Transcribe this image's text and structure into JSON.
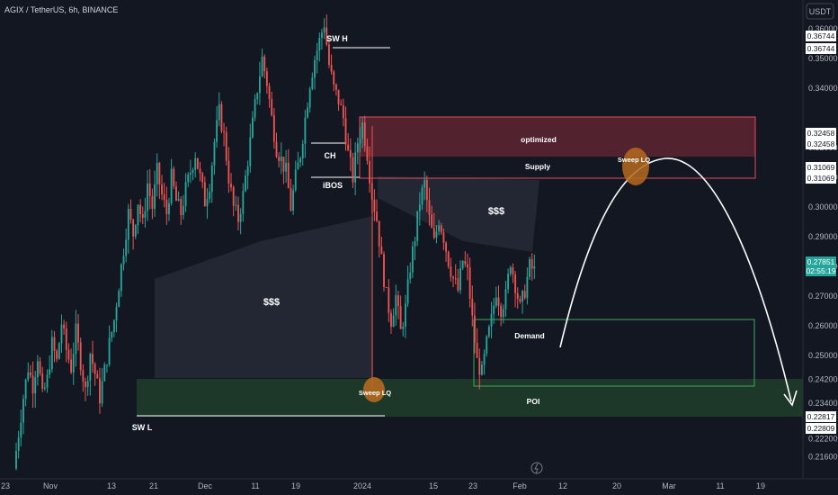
{
  "header": {
    "title": "AGIX / TetherUS, 6h, BINANCE",
    "currency_button": "USDT"
  },
  "chart_data": {
    "type": "candlestick",
    "symbol": "AGIX / TetherUS",
    "interval": "6h",
    "exchange": "BINANCE",
    "y_ticks": [
      0.216,
      0.222,
      0.234,
      0.242,
      0.25,
      0.26,
      0.27,
      0.28,
      0.29,
      0.3,
      0.31,
      0.32,
      0.34,
      0.35,
      0.36
    ],
    "y_tick_labels": [
      "0.21600",
      "0.22200",
      "0.23400",
      "0.24200",
      "0.25000",
      "0.26000",
      "0.27000",
      "0.28000",
      "0.29000",
      "0.30000",
      "0.31000",
      "0.32000",
      "0.34000",
      "0.35000",
      "0.36000"
    ],
    "x_labels": [
      "23",
      "Nov",
      "13",
      "21",
      "Dec",
      "11",
      "19",
      "2024",
      "15",
      "23",
      "Feb",
      "12",
      "20",
      "Mar",
      "11",
      "19"
    ],
    "price_badges": [
      {
        "text": "0.36744",
        "dark": false
      },
      {
        "text": "0.36744",
        "dark": false
      },
      {
        "text": "0.32458",
        "dark": false
      },
      {
        "text": "0.32458",
        "dark": false
      },
      {
        "text": "0.31069",
        "dark": false
      },
      {
        "text": "0.31069",
        "dark": false
      },
      {
        "text": "0.27851",
        "dark": false,
        "accent": true
      },
      {
        "text": "02:55:19",
        "dark": false,
        "accent": true
      },
      {
        "text": "0.22817",
        "dark": false
      },
      {
        "text": "0.22809",
        "dark": false
      }
    ],
    "current_price": 0.27851,
    "countdown": "02:55:19",
    "annotations": {
      "sw_h": "SW H",
      "sw_l": "SW L",
      "ch": "CH",
      "ibos": "iBOS",
      "liquidity_left": "$$$",
      "liquidity_right": "$$$",
      "optimized": "optimized",
      "supply": "Supply",
      "sweep_lq_top": "Sweep LQ",
      "sweep_lq_bottom": "Sweep LQ",
      "demand": "Demand",
      "poi": "POI"
    },
    "zones": {
      "supply": [
        0.31069,
        0.3365
      ],
      "optimized": [
        0.32458,
        0.3365
      ],
      "demand": [
        0.2366,
        0.2628
      ],
      "poi": [
        0.22817,
        0.2375
      ]
    },
    "key_levels": {
      "swing_high": 0.36744,
      "swing_low": 0.22809
    },
    "colors": {
      "up": "#26a69a",
      "down": "#ef5350",
      "supply_zone": "#5e2530",
      "poi_zone": "#1e3a2a",
      "accent": "#26a69a",
      "arrow": "#ffffff",
      "sweep_marker": "#b56a1f"
    },
    "grid": false,
    "price_path": [
      0.212,
      0.224,
      0.236,
      0.246,
      0.24,
      0.25,
      0.236,
      0.242,
      0.254,
      0.248,
      0.261,
      0.252,
      0.246,
      0.258,
      0.248,
      0.238,
      0.251,
      0.244,
      0.236,
      0.245,
      0.254,
      0.262,
      0.274,
      0.286,
      0.298,
      0.291,
      0.302,
      0.294,
      0.308,
      0.3,
      0.312,
      0.304,
      0.298,
      0.31,
      0.302,
      0.298,
      0.306,
      0.312,
      0.318,
      0.31,
      0.302,
      0.308,
      0.322,
      0.332,
      0.324,
      0.31,
      0.3,
      0.296,
      0.304,
      0.316,
      0.328,
      0.34,
      0.35,
      0.342,
      0.33,
      0.32,
      0.316,
      0.312,
      0.3,
      0.31,
      0.318,
      0.33,
      0.342,
      0.35,
      0.356,
      0.362,
      0.348,
      0.34,
      0.336,
      0.33,
      0.318,
      0.31,
      0.322,
      0.328,
      0.318,
      0.304,
      0.296,
      0.282,
      0.27,
      0.262,
      0.27,
      0.258,
      0.266,
      0.28,
      0.29,
      0.302,
      0.308,
      0.296,
      0.288,
      0.296,
      0.29,
      0.282,
      0.276,
      0.272,
      0.282,
      0.278,
      0.262,
      0.248,
      0.244,
      0.254,
      0.262,
      0.272,
      0.266,
      0.27,
      0.282,
      0.274,
      0.266,
      0.272,
      0.28,
      0.2785
    ]
  }
}
